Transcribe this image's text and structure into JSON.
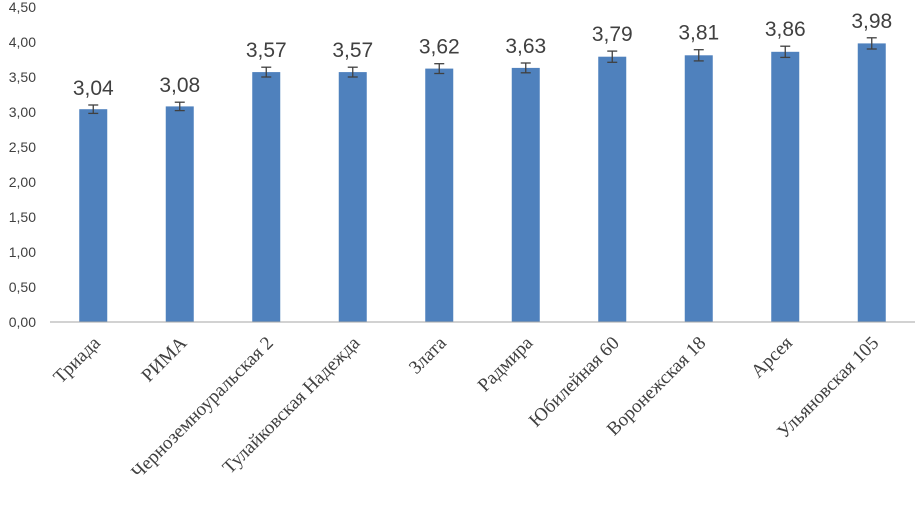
{
  "chart_data": {
    "type": "bar",
    "categories": [
      "Триада",
      "РИМА",
      "Черноземноуральская 2",
      "Тулайковская Надежда",
      "Злата",
      "Радмира",
      "Юбилейная 60",
      "Воронежская 18",
      "Арсея",
      "Ульяновская 105"
    ],
    "values": [
      3.04,
      3.08,
      3.57,
      3.57,
      3.62,
      3.63,
      3.79,
      3.81,
      3.86,
      3.98
    ],
    "value_labels": [
      "3,04",
      "3,08",
      "3,57",
      "3,57",
      "3,62",
      "3,63",
      "3,79",
      "3,81",
      "3,86",
      "3,98"
    ],
    "error": [
      0.06,
      0.06,
      0.07,
      0.07,
      0.07,
      0.07,
      0.08,
      0.08,
      0.08,
      0.08
    ],
    "ylim": [
      0,
      4.5
    ],
    "y_ticks": [
      0,
      0.5,
      1.0,
      1.5,
      2.0,
      2.5,
      3.0,
      3.5,
      4.0,
      4.5
    ],
    "y_tick_labels": [
      "0,00",
      "0,50",
      "1,00",
      "1,50",
      "2,00",
      "2,50",
      "3,00",
      "3,50",
      "4,00",
      "4,50"
    ],
    "grid": false,
    "legend": "none",
    "bar_color": "#4f81bd",
    "title": "",
    "xlabel": "",
    "ylabel": ""
  }
}
